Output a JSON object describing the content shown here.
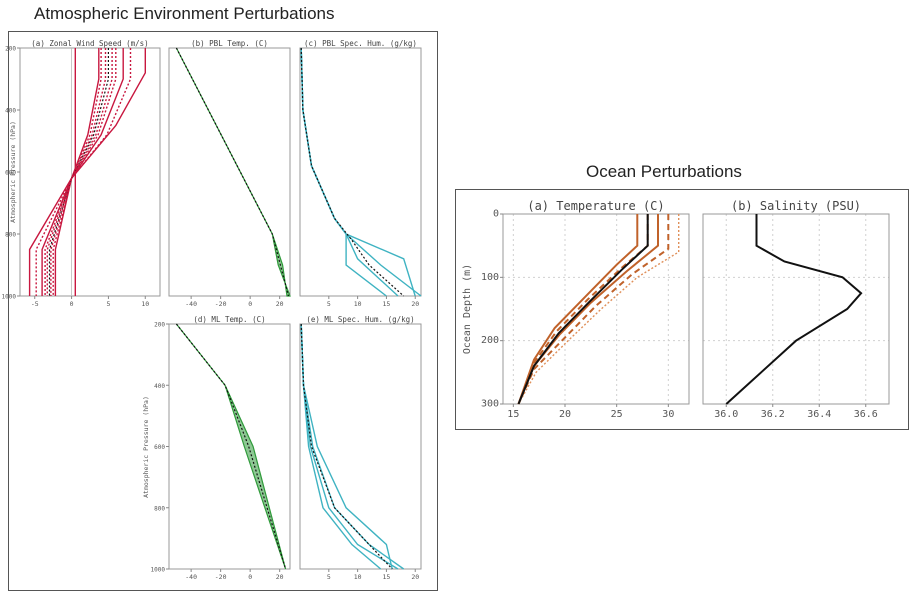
{
  "atmosphere": {
    "title": "Atmospheric Environment Perturbations",
    "ylabel": "Atmospheric Pressure (hPa)",
    "panels": [
      {
        "id": "a",
        "title": "(a) Zonal Wind Speed (m/s)",
        "xticks": [
          "-5",
          "0",
          "5",
          "10"
        ],
        "yticks": [
          "200",
          "400",
          "600",
          "800",
          "1000"
        ]
      },
      {
        "id": "b",
        "title": "(b) PBL Temp. (C)",
        "xticks": [
          "-40",
          "-20",
          "0",
          "20"
        ]
      },
      {
        "id": "c",
        "title": "(c) PBL Spec. Hum. (g/kg)",
        "xticks": [
          "5",
          "10",
          "15",
          "20"
        ]
      },
      {
        "id": "d",
        "title": "(d) ML Temp. (C)",
        "xticks": [
          "-40",
          "-20",
          "0",
          "20"
        ],
        "yticks": [
          "200",
          "400",
          "600",
          "800",
          "1000"
        ]
      },
      {
        "id": "e",
        "title": "(e) ML Spec. Hum. (g/kg)",
        "xticks": [
          "5",
          "10",
          "15",
          "20"
        ]
      }
    ]
  },
  "ocean": {
    "title": "Ocean Perturbations",
    "ylabel": "Ocean Depth (m)",
    "panels": [
      {
        "id": "a",
        "title": "(a) Temperature (C)",
        "xticks": [
          "15",
          "20",
          "25",
          "30"
        ],
        "yticks": [
          "0",
          "100",
          "200",
          "300"
        ]
      },
      {
        "id": "b",
        "title": "(b) Salinity (PSU)",
        "xticks": [
          "36.0",
          "36.2",
          "36.4",
          "36.6"
        ]
      }
    ]
  },
  "colors": {
    "wind": "#c8173f",
    "temp": "#2f9a3a",
    "hum": "#3fb3c2",
    "ocean_temp": "#c0622a",
    "black": "#111111",
    "grid": "#d0d0d0"
  },
  "chart_data": [
    {
      "type": "line",
      "panel": "(a) Zonal Wind Speed (m/s)",
      "xlim": [
        -7,
        12
      ],
      "ylim": [
        1000,
        200
      ],
      "y_scale": "pressure",
      "grid": false,
      "series": [
        {
          "style": "solid",
          "points": [
            [
              10,
              200
            ],
            [
              10,
              280
            ],
            [
              6,
              450
            ],
            [
              0,
              620
            ],
            [
              -5.7,
              850
            ],
            [
              -5.7,
              1000
            ]
          ]
        },
        {
          "style": "solid",
          "points": [
            [
              7,
              200
            ],
            [
              7,
              300
            ],
            [
              4,
              480
            ],
            [
              0,
              620
            ],
            [
              -4,
              850
            ],
            [
              -4,
              1000
            ]
          ]
        },
        {
          "style": "solid",
          "points": [
            [
              3.7,
              200
            ],
            [
              3.7,
              300
            ],
            [
              2.2,
              480
            ],
            [
              0,
              620
            ],
            [
              -2.2,
              850
            ],
            [
              -2.2,
              1000
            ]
          ]
        },
        {
          "style": "solid",
          "points": [
            [
              0.5,
              200
            ],
            [
              0.5,
              1000
            ]
          ]
        },
        {
          "style": "mean",
          "points": [
            [
              5,
              200
            ],
            [
              5,
              300
            ],
            [
              3,
              480
            ],
            [
              0,
              620
            ],
            [
              -3,
              850
            ],
            [
              -3,
              1000
            ]
          ]
        },
        {
          "style": "dotted",
          "points": [
            [
              4,
              200
            ],
            [
              4,
              300
            ],
            [
              2.5,
              480
            ],
            [
              0,
              620
            ],
            [
              -2.5,
              850
            ],
            [
              -2.5,
              1000
            ]
          ]
        },
        {
          "style": "dotted",
          "points": [
            [
              6,
              200
            ],
            [
              6,
              300
            ],
            [
              3.6,
              480
            ],
            [
              0,
              620
            ],
            [
              -3.6,
              850
            ],
            [
              -3.6,
              1000
            ]
          ]
        },
        {
          "style": "dotted",
          "points": [
            [
              4.6,
              200
            ],
            [
              4.6,
              300
            ],
            [
              2.8,
              480
            ],
            [
              0,
              620
            ],
            [
              -2.8,
              850
            ],
            [
              -2.8,
              1000
            ]
          ]
        },
        {
          "style": "dotted",
          "points": [
            [
              5.5,
              200
            ],
            [
              5.5,
              300
            ],
            [
              3.3,
              480
            ],
            [
              0,
              620
            ],
            [
              -3.3,
              850
            ],
            [
              -3.3,
              1000
            ]
          ]
        },
        {
          "style": "dotted",
          "points": [
            [
              8,
              200
            ],
            [
              8,
              300
            ],
            [
              4.8,
              480
            ],
            [
              0,
              620
            ],
            [
              -4.8,
              850
            ],
            [
              -4.8,
              1000
            ]
          ]
        }
      ]
    },
    {
      "type": "line",
      "panel": "(b) PBL Temp. (C)",
      "xlim": [
        -55,
        27
      ],
      "ylim": [
        1000,
        200
      ],
      "grid": false,
      "series": [
        {
          "style": "envelope",
          "points": [
            [
              -50,
              200
            ],
            [
              15,
              800
            ],
            [
              22,
              900
            ],
            [
              25,
              1000
            ]
          ]
        },
        {
          "style": "envelope",
          "points": [
            [
              -50,
              200
            ],
            [
              15,
              800
            ],
            [
              19,
              900
            ],
            [
              27,
              1000
            ]
          ]
        },
        {
          "style": "mean",
          "points": [
            [
              -50,
              200
            ],
            [
              15,
              800
            ],
            [
              20.5,
              900
            ],
            [
              26,
              1000
            ]
          ]
        }
      ]
    },
    {
      "type": "line",
      "panel": "(c) PBL Spec. Hum. (g/kg)",
      "xlim": [
        0,
        21
      ],
      "ylim": [
        1000,
        200
      ],
      "grid": false,
      "series": [
        {
          "style": "solid",
          "points": [
            [
              0.2,
              200
            ],
            [
              0.5,
              400
            ],
            [
              2,
              580
            ],
            [
              6,
              750
            ],
            [
              8,
              800
            ],
            [
              10,
              880
            ],
            [
              17,
              1000
            ]
          ]
        },
        {
          "style": "solid",
          "points": [
            [
              0.2,
              200
            ],
            [
              0.5,
              400
            ],
            [
              2,
              580
            ],
            [
              6,
              750
            ],
            [
              8,
              800
            ],
            [
              14,
              900
            ],
            [
              21,
              1000
            ]
          ]
        },
        {
          "style": "solid",
          "points": [
            [
              0.2,
              200
            ],
            [
              0.5,
              400
            ],
            [
              2,
              580
            ],
            [
              6,
              750
            ],
            [
              8,
              800
            ],
            [
              8,
              900
            ],
            [
              15,
              1000
            ]
          ]
        },
        {
          "style": "solid",
          "points": [
            [
              0.2,
              200
            ],
            [
              0.5,
              400
            ],
            [
              2,
              580
            ],
            [
              6,
              750
            ],
            [
              8,
              800
            ],
            [
              18,
              880
            ],
            [
              20,
              1000
            ]
          ]
        },
        {
          "style": "mean",
          "points": [
            [
              0.2,
              200
            ],
            [
              0.5,
              400
            ],
            [
              2,
              580
            ],
            [
              6,
              750
            ],
            [
              9,
              820
            ],
            [
              12,
              900
            ],
            [
              18,
              1000
            ]
          ]
        }
      ]
    },
    {
      "type": "line",
      "panel": "(d) ML Temp. (C)",
      "xlim": [
        -55,
        27
      ],
      "ylim": [
        1000,
        200
      ],
      "grid": false,
      "series": [
        {
          "style": "envelope",
          "points": [
            [
              -50,
              200
            ],
            [
              -17,
              400
            ],
            [
              -4,
              600
            ],
            [
              10,
              800
            ],
            [
              24,
              1000
            ]
          ]
        },
        {
          "style": "envelope",
          "points": [
            [
              -50,
              200
            ],
            [
              -17,
              400
            ],
            [
              2,
              600
            ],
            [
              13,
              800
            ],
            [
              24,
              1000
            ]
          ]
        },
        {
          "style": "mean",
          "points": [
            [
              -50,
              200
            ],
            [
              -17,
              400
            ],
            [
              -1,
              600
            ],
            [
              11.5,
              800
            ],
            [
              24,
              1000
            ]
          ]
        }
      ]
    },
    {
      "type": "line",
      "panel": "(e) ML Spec. Hum. (g/kg)",
      "xlim": [
        0,
        21
      ],
      "ylim": [
        1000,
        200
      ],
      "grid": false,
      "series": [
        {
          "style": "solid",
          "points": [
            [
              0.2,
              200
            ],
            [
              0.6,
              400
            ],
            [
              2.2,
              600
            ],
            [
              6,
              800
            ],
            [
              12,
              920
            ],
            [
              18,
              1000
            ]
          ]
        },
        {
          "style": "solid",
          "points": [
            [
              0.2,
              200
            ],
            [
              0.6,
              400
            ],
            [
              1.5,
              600
            ],
            [
              4,
              800
            ],
            [
              9,
              920
            ],
            [
              14,
              1000
            ]
          ]
        },
        {
          "style": "solid",
          "points": [
            [
              0.2,
              200
            ],
            [
              0.6,
              400
            ],
            [
              3,
              600
            ],
            [
              8,
              800
            ],
            [
              15,
              920
            ],
            [
              16,
              1000
            ]
          ]
        },
        {
          "style": "solid",
          "points": [
            [
              0.2,
              200
            ],
            [
              0.6,
              400
            ],
            [
              1.8,
              600
            ],
            [
              5,
              800
            ],
            [
              10,
              920
            ],
            [
              17,
              1000
            ]
          ]
        },
        {
          "style": "mean",
          "points": [
            [
              0.2,
              200
            ],
            [
              0.6,
              400
            ],
            [
              2,
              600
            ],
            [
              6,
              800
            ],
            [
              12,
              920
            ],
            [
              16,
              1000
            ]
          ]
        }
      ]
    },
    {
      "type": "line",
      "panel": "(a) Temperature (C)",
      "xlim": [
        14,
        32
      ],
      "ylim": [
        300,
        0
      ],
      "grid": true,
      "series": [
        {
          "style": "solid_orange",
          "points": [
            [
              27,
              0
            ],
            [
              27,
              50
            ],
            [
              25,
              80
            ],
            [
              22,
              130
            ],
            [
              19,
              180
            ],
            [
              17,
              230
            ],
            [
              15.5,
              300
            ]
          ]
        },
        {
          "style": "solid_orange",
          "points": [
            [
              29,
              0
            ],
            [
              29,
              50
            ],
            [
              26,
              90
            ],
            [
              22.5,
              140
            ],
            [
              19.5,
              190
            ],
            [
              17,
              240
            ],
            [
              15.5,
              300
            ]
          ]
        },
        {
          "style": "dashed_orange",
          "points": [
            [
              28,
              0
            ],
            [
              28,
              50
            ],
            [
              25.5,
              85
            ],
            [
              22.2,
              135
            ],
            [
              19.2,
              185
            ],
            [
              17,
              235
            ],
            [
              15.5,
              300
            ]
          ]
        },
        {
          "style": "dashed_orange",
          "points": [
            [
              30,
              0
            ],
            [
              30,
              55
            ],
            [
              26.5,
              95
            ],
            [
              23,
              145
            ],
            [
              20,
              195
            ],
            [
              17,
              245
            ],
            [
              15.5,
              300
            ]
          ]
        },
        {
          "style": "dotted_orange",
          "points": [
            [
              31,
              0
            ],
            [
              31,
              60
            ],
            [
              27,
              100
            ],
            [
              23.5,
              150
            ],
            [
              20.3,
              200
            ],
            [
              17.2,
              250
            ],
            [
              15.5,
              300
            ]
          ]
        },
        {
          "style": "mean",
          "points": [
            [
              28,
              0
            ],
            [
              28,
              50
            ],
            [
              25.5,
              88
            ],
            [
              22.4,
              138
            ],
            [
              19.4,
              188
            ],
            [
              17,
              240
            ],
            [
              15.5,
              300
            ]
          ]
        }
      ]
    },
    {
      "type": "line",
      "panel": "(b) Salinity (PSU)",
      "xlim": [
        35.9,
        36.7
      ],
      "ylim": [
        300,
        0
      ],
      "grid": true,
      "series": [
        {
          "style": "mean",
          "points": [
            [
              36.13,
              0
            ],
            [
              36.13,
              50
            ],
            [
              36.25,
              75
            ],
            [
              36.5,
              100
            ],
            [
              36.58,
              125
            ],
            [
              36.52,
              150
            ],
            [
              36.3,
              200
            ],
            [
              36.0,
              300
            ]
          ]
        }
      ]
    }
  ]
}
